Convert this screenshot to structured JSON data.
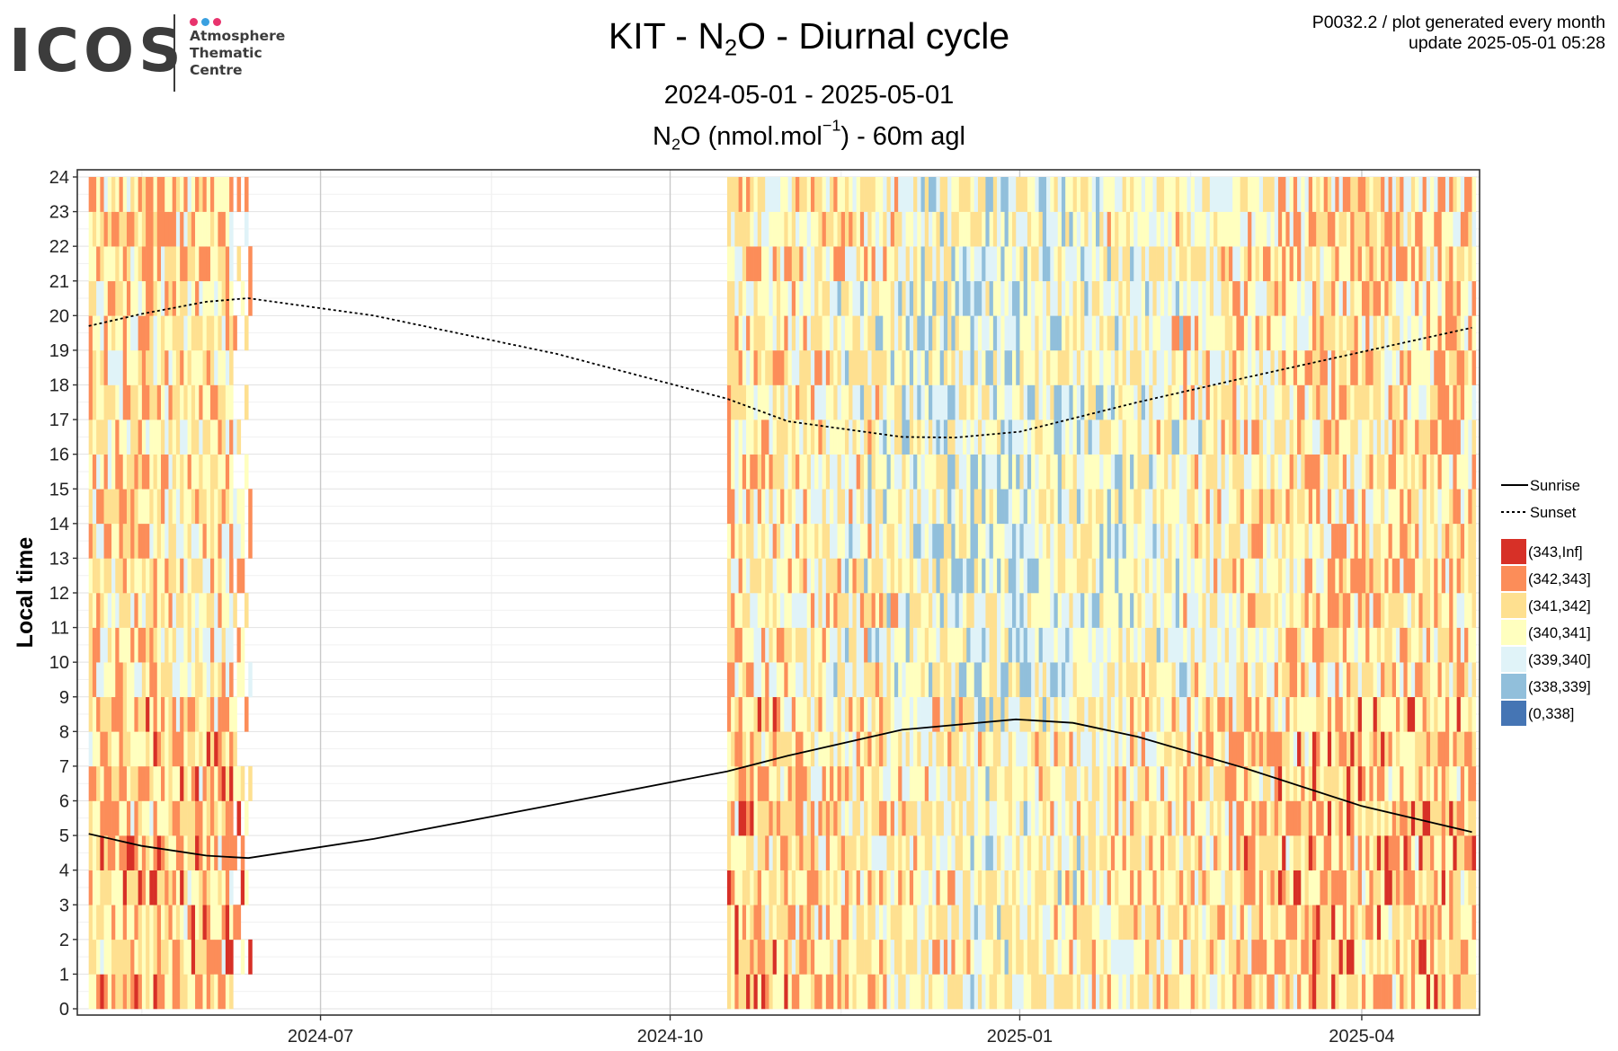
{
  "header": {
    "logo": {
      "word": "ICOS",
      "line1": "Atmosphere",
      "line2": "Thematic",
      "line3": "Centre",
      "dot_colors": [
        "#e8336d",
        "#3aa0e0",
        "#e8336d"
      ]
    },
    "title_prefix": "KIT - N",
    "title_sub": "2",
    "title_suffix": "O - Diurnal cycle",
    "date_range": "2024-05-01 - 2025-05-01",
    "subtitle_a": "N",
    "subtitle_sub": "2",
    "subtitle_b": "O (nmol.mol",
    "subtitle_sup": "−1",
    "subtitle_c": ") - 60m agl",
    "meta_line1": "P0032.2 / plot generated every month",
    "meta_line2": "update  2025-05-01 05:28"
  },
  "chart_data": {
    "type": "heatmap",
    "ylabel": "Local time",
    "y_ticks": [
      "0",
      "1",
      "2",
      "3",
      "4",
      "5",
      "6",
      "7",
      "8",
      "9",
      "10",
      "11",
      "12",
      "13",
      "14",
      "15",
      "16",
      "17",
      "18",
      "19",
      "20",
      "21",
      "22",
      "23",
      "24"
    ],
    "ylim": [
      0,
      24
    ],
    "x_ticks": [
      "2024-07",
      "2024-10",
      "2025-01",
      "2025-04"
    ],
    "xlim": [
      "2024-04-28",
      "2025-05-02"
    ],
    "grid": true,
    "data_periods": [
      {
        "start": "2024-05-01",
        "end": "2024-06-07",
        "note": "full"
      },
      {
        "start": "2024-06-08",
        "end": "2024-06-12",
        "note": "sparse"
      },
      {
        "start": "2024-10-16",
        "end": "2025-04-30",
        "note": "full"
      }
    ],
    "legend": [
      {
        "label": "Sunrise",
        "style": "solid"
      },
      {
        "label": "Sunset",
        "style": "dotted"
      },
      {
        "label": "(343,Inf]",
        "color": "#d73027"
      },
      {
        "label": "(342,343]",
        "color": "#fc8d59"
      },
      {
        "label": "(341,342]",
        "color": "#fee090"
      },
      {
        "label": "(340,341]",
        "color": "#ffffbf"
      },
      {
        "label": "(339,340]",
        "color": "#e0f3f8"
      },
      {
        "label": "(338,339]",
        "color": "#91bfdb"
      },
      {
        "label": "(0,338]",
        "color": "#4575b4"
      }
    ],
    "sunrise": {
      "x": [
        "2024-05-01",
        "2024-05-15",
        "2024-06-01",
        "2024-06-12",
        "2024-07-15",
        "2024-09-01",
        "2024-10-16",
        "2024-11-01",
        "2024-12-01",
        "2024-12-31",
        "2025-01-15",
        "2025-02-01",
        "2025-03-01",
        "2025-04-01",
        "2025-04-30"
      ],
      "y": [
        5.05,
        4.7,
        4.42,
        4.35,
        4.9,
        5.9,
        6.85,
        7.3,
        8.05,
        8.35,
        8.25,
        7.85,
        6.95,
        5.85,
        5.1
      ]
    },
    "sunset": {
      "x": [
        "2024-05-01",
        "2024-05-15",
        "2024-06-01",
        "2024-06-12",
        "2024-07-15",
        "2024-09-01",
        "2024-10-16",
        "2024-11-01",
        "2024-12-01",
        "2024-12-15",
        "2025-01-01",
        "2025-02-01",
        "2025-03-01",
        "2025-04-01",
        "2025-04-30"
      ],
      "y": [
        19.7,
        20.05,
        20.4,
        20.5,
        20.0,
        18.9,
        17.6,
        16.95,
        16.5,
        16.48,
        16.65,
        17.5,
        18.2,
        18.95,
        19.65
      ]
    }
  }
}
